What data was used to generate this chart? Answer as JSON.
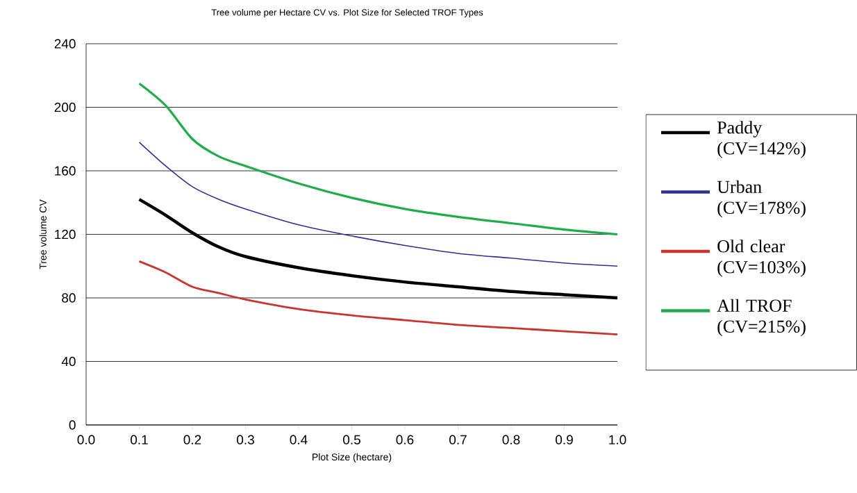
{
  "chart_data": {
    "type": "line",
    "title": "Tree volume per Hectare CV vs. Plot Size for Selected TROF Types",
    "xlabel": "Plot Size (hectare)",
    "ylabel": "Tree volume CV",
    "x": [
      0.1,
      0.15,
      0.2,
      0.25,
      0.3,
      0.4,
      0.5,
      0.6,
      0.7,
      0.8,
      0.9,
      1.0
    ],
    "series": [
      {
        "name": "Paddy (CV=142%)",
        "color": "#000000",
        "values": [
          142,
          132,
          121,
          112,
          106,
          99,
          94,
          90,
          87,
          84,
          82,
          80
        ]
      },
      {
        "name": "Urban (CV=178%)",
        "color": "#2e3192",
        "values": [
          178,
          163,
          150,
          142,
          136,
          126,
          119,
          113,
          108,
          105,
          102,
          100
        ]
      },
      {
        "name": "Old clear (CV=103%)",
        "color": "#c8352f",
        "values": [
          103,
          96,
          87,
          83,
          79,
          73,
          69,
          66,
          63,
          61,
          59,
          57
        ]
      },
      {
        "name": "All TROF (CV=215%)",
        "color": "#1fad4b",
        "values": [
          215,
          201,
          180,
          169,
          163,
          152,
          143,
          136,
          131,
          127,
          123,
          120
        ]
      }
    ],
    "xlim": [
      0.0,
      1.0
    ],
    "ylim": [
      0,
      240
    ],
    "xticks": [
      {
        "value": 0.0,
        "label": "0.0"
      },
      0.1,
      0.2,
      0.3,
      0.4,
      0.5,
      0.6,
      0.7,
      0.8,
      0.9,
      {
        "value": 1.0,
        "label": "1.0"
      }
    ],
    "yticks": [
      0,
      40,
      80,
      120,
      160,
      200,
      240
    ],
    "grid": "y",
    "legend": "right",
    "marker": "none",
    "line_style": "solid"
  }
}
